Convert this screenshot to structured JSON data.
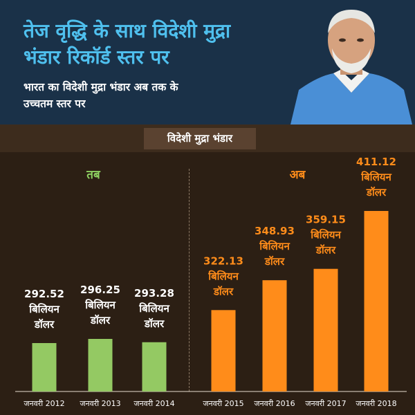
{
  "header": {
    "title_line1": "तेज वृद्धि के साथ विदेशी मुद्रा",
    "title_line2": "भंडार रिकॉर्ड स्तर पर",
    "subtitle_line1": "भारत का विदेशी मुद्रा भंडार अब तक के",
    "subtitle_line2": "उच्चतम स्तर पर"
  },
  "chart_label": "विदेशी मुद्रा भंडार",
  "periods": {
    "then": "तब",
    "now": "अब"
  },
  "unit_lines": [
    "बिलियन",
    "डॉलर"
  ],
  "colors": {
    "then": "#94c963",
    "now": "#ff8c1a",
    "background": "#2c1f14",
    "header": "#1a3148",
    "title": "#4fc0ee"
  },
  "chart_data": {
    "type": "bar",
    "categories": [
      "जनवरी 2012",
      "जनवरी 2013",
      "जनवरी 2014",
      "जनवरी 2015",
      "जनवरी 2016",
      "जनवरी 2017",
      "जनवरी 2018"
    ],
    "values": [
      292.52,
      296.25,
      293.28,
      322.13,
      348.93,
      359.15,
      411.12
    ],
    "data_labels": [
      "292.52",
      "296.25",
      "293.28",
      "322.13",
      "348.93",
      "359.15",
      "411.12"
    ],
    "groups": [
      "then",
      "then",
      "then",
      "now",
      "now",
      "now",
      "now"
    ],
    "unit": "बिलियन डॉलर",
    "title": "विदेशी मुद्रा भंडार",
    "xlabel": "",
    "ylabel": "",
    "grid": false,
    "legend": "none"
  }
}
